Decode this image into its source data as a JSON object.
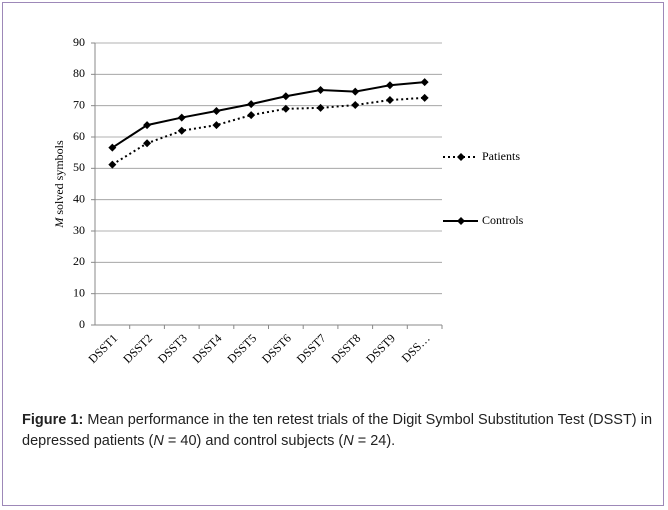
{
  "chart_data": {
    "type": "line",
    "y_label": [
      "M",
      " solved symbols"
    ],
    "categories": [
      "DSST1",
      "DSST2",
      "DSST3",
      "DSST4",
      "DSST5",
      "DSST6",
      "DSST7",
      "DSST8",
      "DSST9",
      "DSS…"
    ],
    "series": [
      {
        "name": "Patients",
        "color": "#000000",
        "dash": "dotted",
        "values": [
          51.2,
          58,
          62,
          63.8,
          67,
          69,
          69.3,
          70.2,
          71.8,
          72.5
        ]
      },
      {
        "name": "Controls",
        "color": "#000000",
        "dash": "solid",
        "values": [
          56.6,
          63.8,
          66.2,
          68.3,
          70.5,
          73,
          75,
          74.5,
          76.5,
          77.5
        ]
      }
    ],
    "ylim": [
      0,
      90
    ],
    "yticks": [
      0,
      10,
      20,
      30,
      40,
      50,
      60,
      70,
      80,
      90
    ],
    "grid": true,
    "legend": "right"
  },
  "caption": [
    "Figure 1:",
    " Mean performance in the ten retest trials of the Digit Symbol Substitution Test (DSST) in depressed patients (",
    "N",
    " = 40) and control subjects (",
    "N",
    " = 24)."
  ]
}
